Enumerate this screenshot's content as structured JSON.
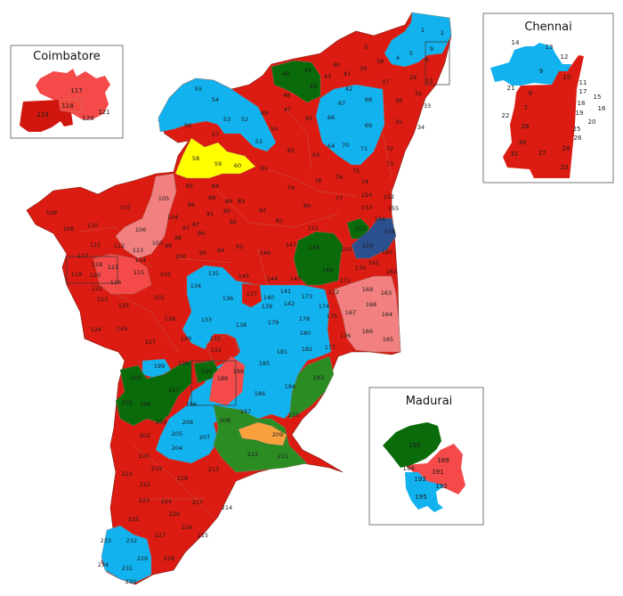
{
  "colors": {
    "red": "#dc1c12",
    "light_red": "#f44a4a",
    "pink": "#f28080",
    "blue": "#12b2ef",
    "dark_green": "#0a6b0a",
    "green": "#2c8c24",
    "navy": "#2b4f8f",
    "yellow": "#ffff00",
    "orange": "#f9a23d",
    "border": "#a07a66"
  },
  "main_map": {
    "labels": [
      "1",
      "2",
      "3",
      "4",
      "5",
      "6",
      "9",
      "13",
      "29",
      "32",
      "33",
      "34",
      "35",
      "36",
      "37",
      "38",
      "39",
      "40",
      "41",
      "42",
      "43",
      "44",
      "45",
      "46",
      "47",
      "48",
      "49",
      "50",
      "51",
      "52",
      "53",
      "54",
      "55",
      "56",
      "57",
      "58",
      "59",
      "60",
      "61",
      "62",
      "63",
      "64",
      "65",
      "66",
      "67",
      "68",
      "69",
      "70",
      "71",
      "72",
      "73",
      "74",
      "75",
      "76",
      "77",
      "78",
      "79",
      "80",
      "81",
      "82",
      "83",
      "84",
      "85",
      "86",
      "87",
      "88",
      "89",
      "90",
      "91",
      "92",
      "93",
      "94",
      "95",
      "96",
      "97",
      "98",
      "99",
      "100",
      "101",
      "102",
      "103",
      "104",
      "105",
      "106",
      "107",
      "108",
      "109",
      "110",
      "111",
      "112",
      "113",
      "114",
      "115",
      "116",
      "117",
      "118",
      "119",
      "120",
      "121",
      "122",
      "123",
      "124",
      "125",
      "126",
      "127",
      "128",
      "129",
      "130",
      "131",
      "132",
      "133",
      "134",
      "135",
      "136",
      "137",
      "138",
      "139",
      "140",
      "141",
      "142",
      "143",
      "144",
      "145",
      "146",
      "147",
      "148",
      "149",
      "150",
      "151",
      "152",
      "153",
      "154",
      "155",
      "156",
      "157",
      "158",
      "159",
      "160",
      "161",
      "162",
      "163",
      "164",
      "165",
      "166",
      "167",
      "168",
      "169",
      "170",
      "171",
      "172",
      "173",
      "174",
      "175",
      "176",
      "177",
      "178",
      "179",
      "180",
      "181",
      "182",
      "183",
      "184",
      "185",
      "186",
      "187",
      "188",
      "189",
      "190",
      "196",
      "197",
      "198",
      "199",
      "200",
      "201",
      "202",
      "203",
      "204",
      "205",
      "206",
      "207",
      "208",
      "209",
      "210",
      "211",
      "212",
      "213",
      "214",
      "215",
      "216",
      "217",
      "218",
      "219",
      "220",
      "221",
      "222",
      "223",
      "224",
      "225",
      "226",
      "227",
      "228",
      "229",
      "230",
      "231",
      "232",
      "233",
      "234"
    ]
  },
  "insets": {
    "coimbatore": {
      "title": "Coimbatore",
      "labels": [
        "117",
        "118",
        "119",
        "120",
        "121"
      ]
    },
    "chennai": {
      "title": "Chennai",
      "labels": [
        "14",
        "13",
        "12",
        "9",
        "10",
        "11",
        "17",
        "15",
        "16",
        "18",
        "19",
        "20",
        "21",
        "8",
        "7",
        "22",
        "28",
        "25",
        "26",
        "30",
        "24",
        "31",
        "27",
        "23"
      ]
    },
    "madurai": {
      "title": "Madurai",
      "labels": [
        "190",
        "189",
        "194",
        "191",
        "193",
        "192",
        "195"
      ]
    }
  }
}
